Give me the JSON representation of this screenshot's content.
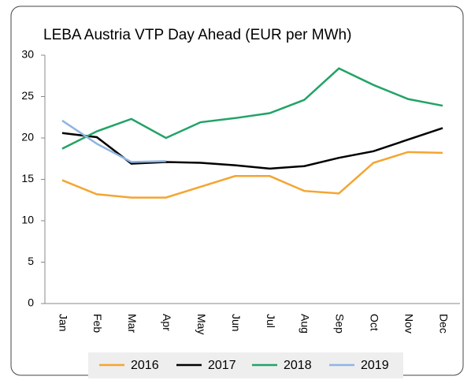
{
  "chart_data": {
    "type": "line",
    "title": "LEBA Austria VTP Day Ahead (EUR per MWh)",
    "categories": [
      "Jan",
      "Feb",
      "Mar",
      "Apr",
      "May",
      "Jun",
      "Jul",
      "Aug",
      "Sep",
      "Oct",
      "Nov",
      "Dec"
    ],
    "series": [
      {
        "name": "2016",
        "color": "#f4a531",
        "values": [
          14.9,
          13.2,
          12.8,
          12.8,
          14.1,
          15.4,
          15.4,
          13.6,
          13.3,
          17.0,
          18.3,
          18.2
        ]
      },
      {
        "name": "2017",
        "color": "#000000",
        "values": [
          20.6,
          20.1,
          16.9,
          17.1,
          17.0,
          16.7,
          16.3,
          16.6,
          17.6,
          18.4,
          19.8,
          21.2
        ]
      },
      {
        "name": "2018",
        "color": "#22a366",
        "values": [
          18.7,
          20.8,
          22.3,
          20.0,
          21.9,
          22.4,
          23.0,
          24.6,
          28.4,
          26.4,
          24.7,
          23.9
        ]
      },
      {
        "name": "2019",
        "color": "#8fb4e3",
        "values": [
          22.1,
          19.3,
          17.1,
          17.2,
          null,
          null,
          null,
          null,
          null,
          null,
          null,
          null
        ]
      }
    ],
    "ylim": [
      0,
      30
    ],
    "yticks": [
      0,
      5,
      10,
      15,
      20,
      25,
      30
    ],
    "grid": false,
    "legend": "bottom"
  }
}
